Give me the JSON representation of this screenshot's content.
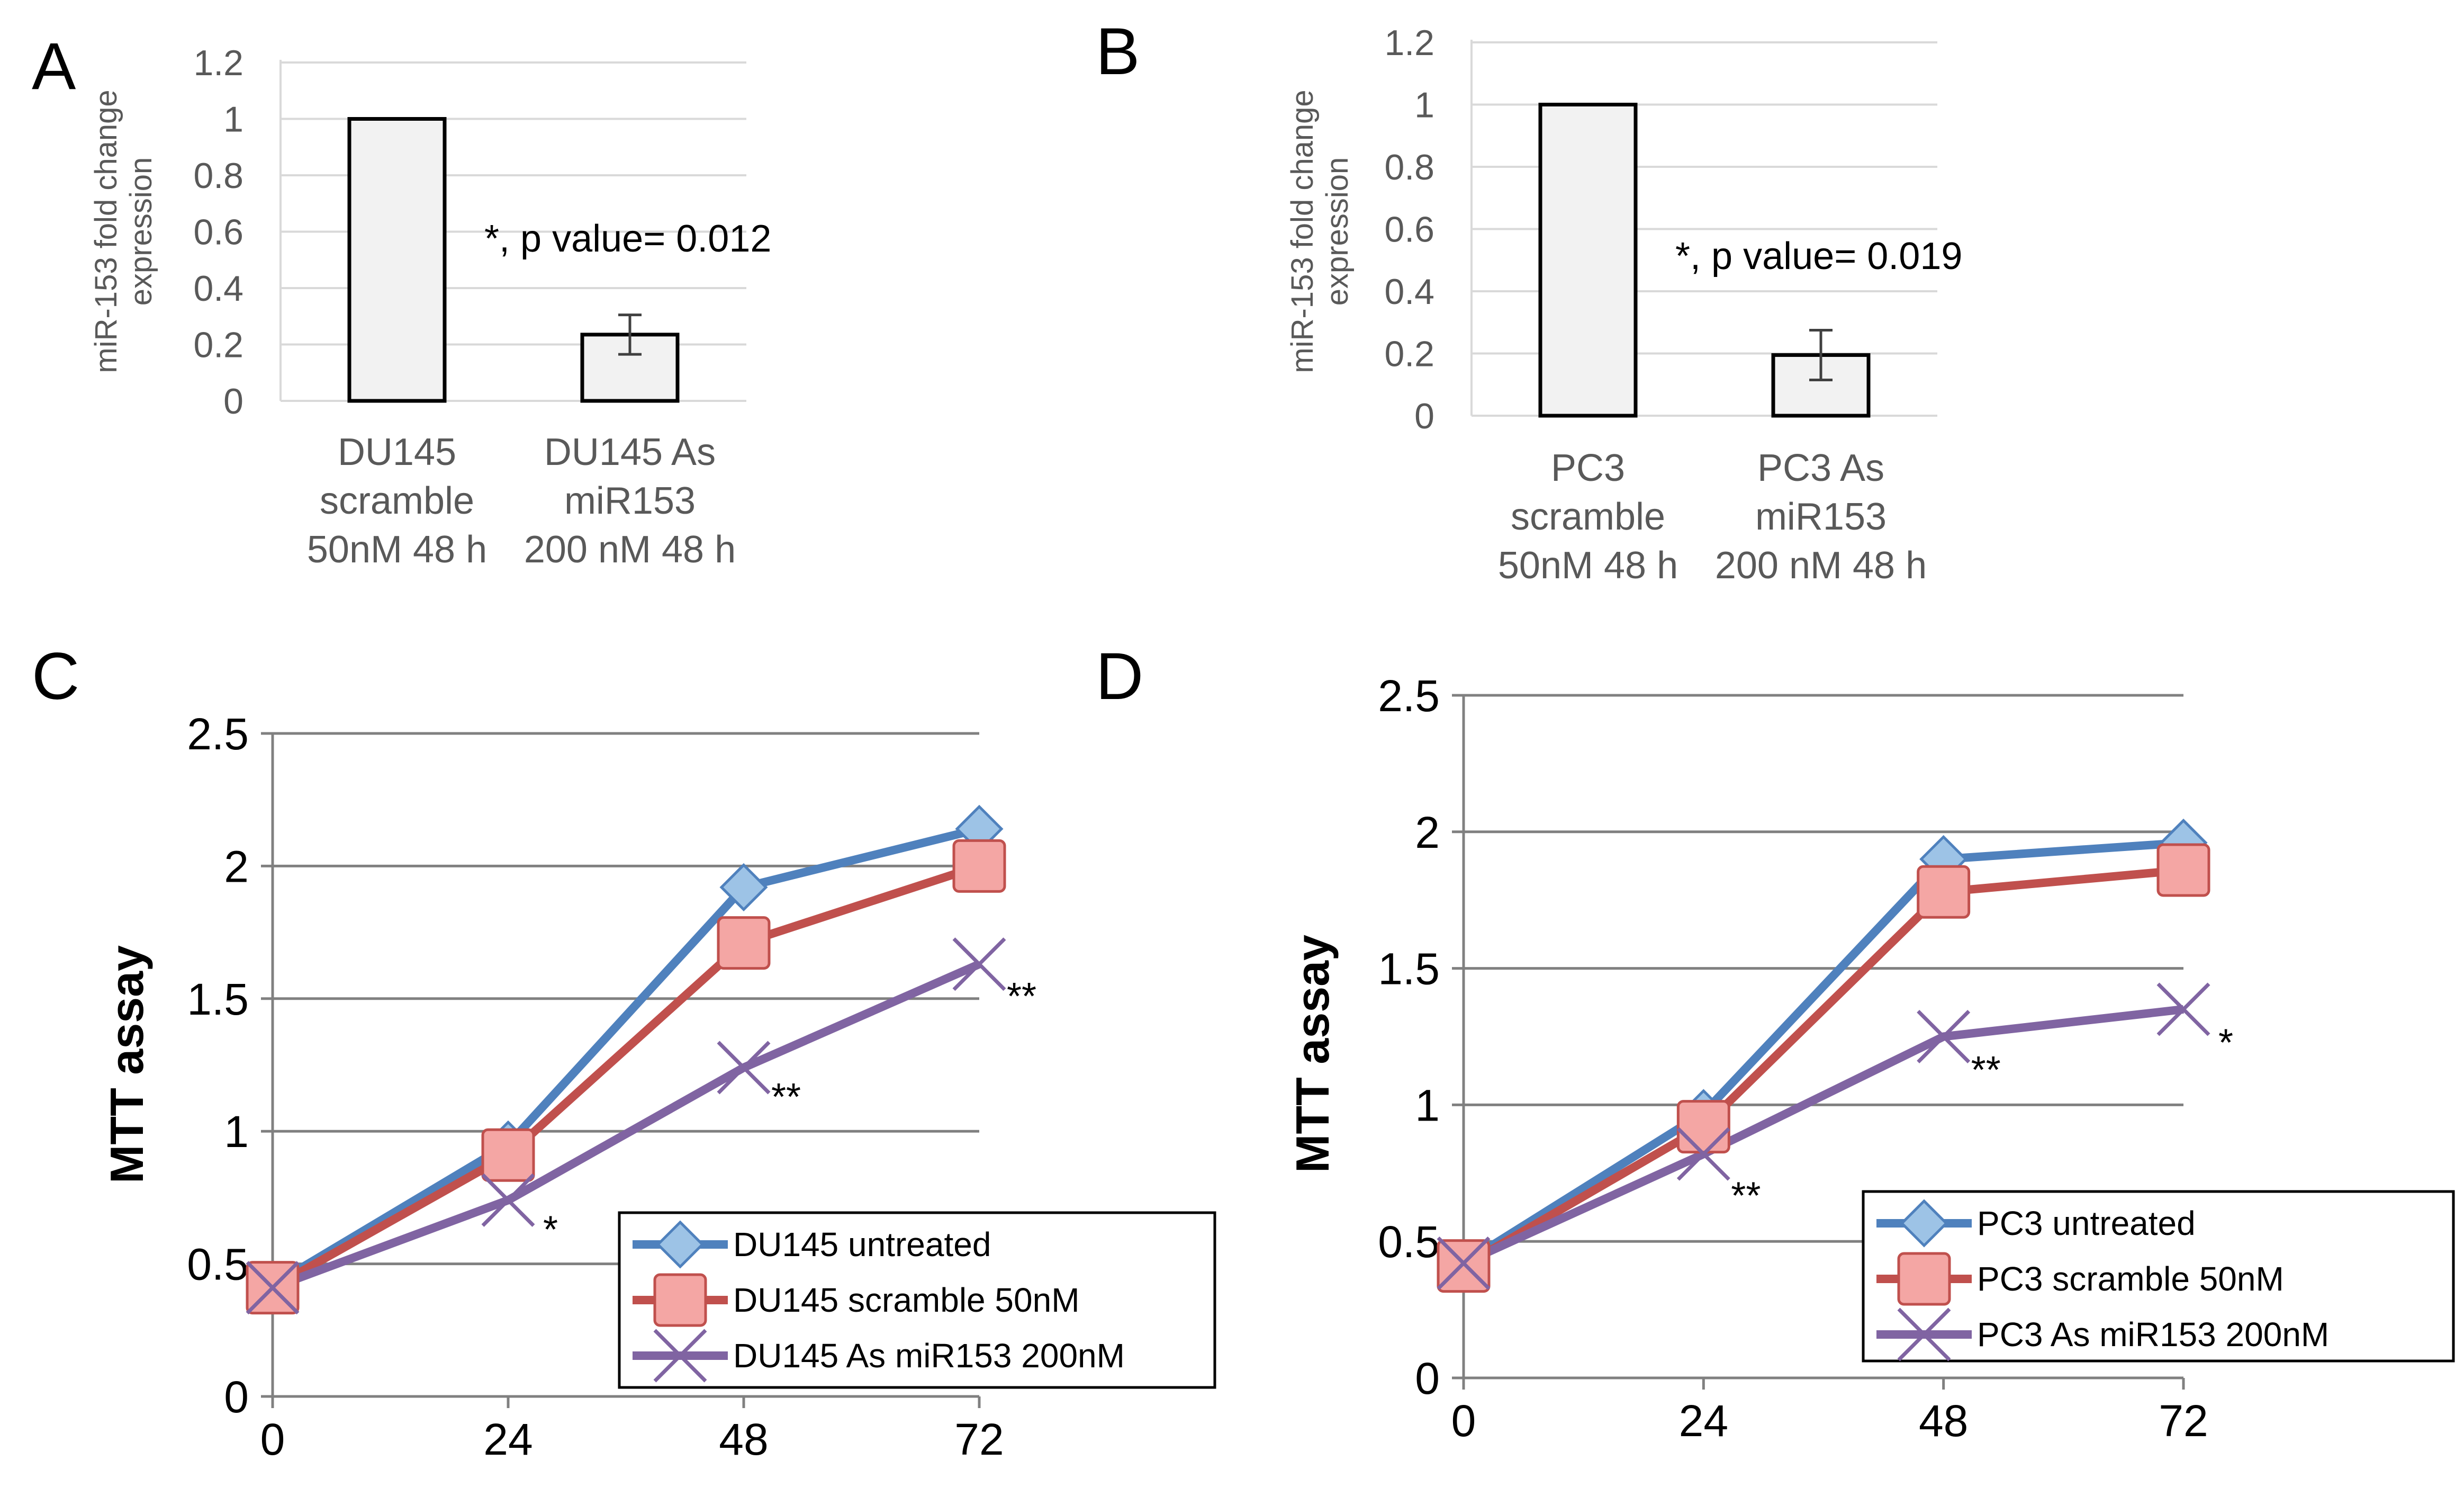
{
  "figure": {
    "panels": [
      "A",
      "B",
      "C",
      "D"
    ]
  },
  "colors": {
    "blue": "#4F81BD",
    "red": "#C0504D",
    "purple": "#8064A2",
    "bar_fill": "#F2F2F2",
    "grid": "#D9D9D9",
    "axis_label": "#595959"
  },
  "chart_data": [
    {
      "panel": "A",
      "type": "bar",
      "categories": [
        [
          "DU145",
          "scramble",
          "50nM 48 h"
        ],
        [
          "DU145 As",
          "miR153",
          "200 nM 48 h"
        ]
      ],
      "values": [
        1.0,
        0.235
      ],
      "error": [
        0.0,
        0.07
      ],
      "ylabel": [
        "miR-153 fold change",
        "expression"
      ],
      "ylim": [
        0,
        1.2
      ],
      "yticks": [
        "0",
        "0.2",
        "0.4",
        "0.6",
        "0.8",
        "1",
        "1.2"
      ],
      "annotation": "*, p value= 0.012",
      "grid": true
    },
    {
      "panel": "B",
      "type": "bar",
      "categories": [
        [
          "PC3",
          "scramble",
          "50nM 48 h"
        ],
        [
          "PC3 As",
          "miR153",
          "200 nM 48 h"
        ]
      ],
      "values": [
        1.0,
        0.195
      ],
      "error": [
        0.0,
        0.08
      ],
      "ylabel": [
        "miR-153 fold change",
        "expression"
      ],
      "ylim": [
        0,
        1.2
      ],
      "yticks": [
        "0",
        "0.2",
        "0.4",
        "0.6",
        "0.8",
        "1",
        "1.2"
      ],
      "annotation": "*, p value= 0.019",
      "grid": true
    },
    {
      "panel": "C",
      "type": "line",
      "x": [
        0,
        24,
        48,
        72
      ],
      "xticks": [
        "0",
        "24",
        "48",
        "72"
      ],
      "ylim": [
        0,
        2.5
      ],
      "yticks": [
        "0",
        "0.5",
        "1",
        "1.5",
        "2",
        "2.5"
      ],
      "ylabel": "MTT assay",
      "grid": true,
      "legend": "bottom-right",
      "series": [
        {
          "name": "DU145 untreated",
          "marker": "diamond",
          "color": "#4F81BD",
          "values": [
            0.42,
            0.95,
            1.92,
            2.14
          ]
        },
        {
          "name": "DU145 scramble 50nM",
          "marker": "square",
          "color": "#C0504D",
          "values": [
            0.41,
            0.91,
            1.71,
            2.0
          ]
        },
        {
          "name": "DU145 As miR153 200nM",
          "marker": "x",
          "color": "#8064A2",
          "values": [
            0.41,
            0.74,
            1.24,
            1.63
          ]
        }
      ],
      "significance": [
        {
          "x": 24,
          "y": 0.58,
          "label": "*"
        },
        {
          "x": 48,
          "y": 1.08,
          "label": "**"
        },
        {
          "x": 72,
          "y": 1.46,
          "label": "**"
        }
      ]
    },
    {
      "panel": "D",
      "type": "line",
      "x": [
        0,
        24,
        48,
        72
      ],
      "xticks": [
        "0",
        "24",
        "48",
        "72"
      ],
      "ylim": [
        0,
        2.5
      ],
      "yticks": [
        "0",
        "0.5",
        "1",
        "1.5",
        "2",
        "2.5"
      ],
      "ylabel": "MTT assay",
      "grid": true,
      "legend": "bottom-right",
      "series": [
        {
          "name": "PC3 untreated",
          "marker": "diamond",
          "color": "#4F81BD",
          "values": [
            0.42,
            0.97,
            1.9,
            1.96
          ]
        },
        {
          "name": "PC3 scramble 50nM",
          "marker": "square",
          "color": "#C0504D",
          "values": [
            0.41,
            0.92,
            1.78,
            1.86
          ]
        },
        {
          "name": "PC3 As miR153 200nM",
          "marker": "x",
          "color": "#8064A2",
          "values": [
            0.42,
            0.82,
            1.25,
            1.35
          ]
        }
      ],
      "significance": [
        {
          "x": 24,
          "y": 0.62,
          "label": "**"
        },
        {
          "x": 48,
          "y": 1.08,
          "label": "**"
        },
        {
          "x": 72,
          "y": 1.18,
          "label": "*"
        }
      ]
    }
  ]
}
